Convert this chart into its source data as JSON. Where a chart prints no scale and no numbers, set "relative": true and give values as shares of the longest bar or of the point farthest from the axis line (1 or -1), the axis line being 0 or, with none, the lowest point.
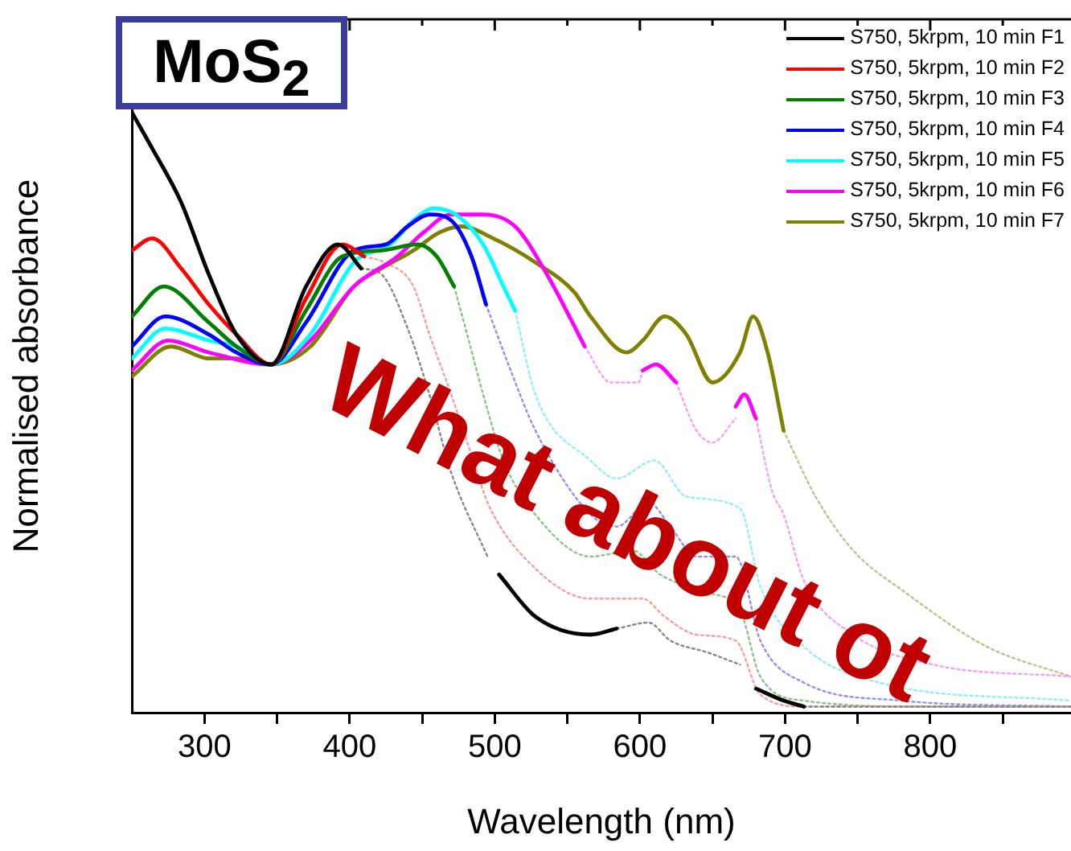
{
  "chart_data": {
    "type": "line",
    "relative": true,
    "title": "MoS$_{2}$",
    "xlabel": "Wavelength (nm)",
    "ylabel": "Normalised absorbance",
    "xlim": [
      250,
      897
    ],
    "xticks": [
      300,
      {
        "value": 350,
        "label": null
      },
      400,
      {
        "value": 450,
        "label": null
      },
      500,
      {
        "value": 550,
        "label": null
      },
      600,
      {
        "value": 650,
        "label": null
      },
      700,
      {
        "value": 750,
        "label": null
      },
      800,
      {
        "value": 850,
        "label": null
      }
    ],
    "tick_labels": "x",
    "grid": false,
    "legend": "top right",
    "marker": "none",
    "line_style": "solid",
    "annotations": [
      "What about ot"
    ],
    "series": [
      {
        "name": "S750, 5krpm, 10 min F1",
        "color": "#000000",
        "x": [
          250,
          264,
          284,
          303,
          322,
          346,
          370,
          392,
          408,
          450,
          503,
          528,
          566,
          584,
          630,
          680,
          699,
          713
        ],
        "values": [
          1,
          0.94,
          0.85,
          0.73,
          0.63,
          0.58,
          0.71,
          0.78,
          0.74,
          null,
          0.23,
          0.16,
          0.13,
          0.14,
          null,
          0.04,
          0.02,
          0.01
        ]
      },
      {
        "name": "S750, 5krpm, 10 min F2",
        "color": "#ff0000",
        "x": [
          250,
          264,
          284,
          303,
          322,
          346,
          370,
          395,
          410
        ],
        "values": [
          0.77,
          0.79,
          0.74,
          0.68,
          0.63,
          0.58,
          0.69,
          0.78,
          0.76
        ]
      },
      {
        "name": "S750, 5krpm, 10 min F3",
        "color": "#007f00",
        "x": [
          250,
          272,
          303,
          322,
          346,
          370,
          395,
          422,
          447,
          460,
          472
        ],
        "values": [
          0.66,
          0.71,
          0.65,
          0.61,
          0.58,
          0.67,
          0.76,
          0.77,
          0.78,
          0.76,
          0.71
        ]
      },
      {
        "name": "S750, 5krpm, 10 min F4",
        "color": "#0000ff",
        "x": [
          250,
          273,
          303,
          322,
          346,
          370,
          403,
          425,
          440,
          455,
          470,
          484,
          494
        ],
        "values": [
          0.61,
          0.66,
          0.63,
          0.6,
          0.58,
          0.65,
          0.77,
          0.78,
          0.81,
          0.83,
          0.82,
          0.76,
          0.68
        ]
      },
      {
        "name": "S750, 5krpm, 10 min F5",
        "color": "#00ffff",
        "x": [
          250,
          273,
          303,
          322,
          346,
          373,
          403,
          428,
          444,
          458,
          473,
          492,
          506,
          514
        ],
        "values": [
          0.59,
          0.64,
          0.62,
          0.61,
          0.58,
          0.63,
          0.75,
          0.78,
          0.82,
          0.84,
          0.83,
          0.78,
          0.71,
          0.67
        ]
      },
      {
        "name": "S750, 5krpm, 10 min F6",
        "color": "#ff00ff",
        "x": [
          250,
          275,
          303,
          346,
          373,
          403,
          433,
          451,
          470,
          492,
          514,
          536,
          562,
          580,
          602,
          611,
          625,
          650,
          666,
          672,
          680
        ],
        "values": [
          0.57,
          0.62,
          0.6,
          0.58,
          0.62,
          0.71,
          0.76,
          0.8,
          0.83,
          0.83,
          0.81,
          0.73,
          0.61,
          null,
          0.57,
          0.58,
          0.55,
          null,
          0.51,
          0.53,
          0.49
        ]
      },
      {
        "name": "S750, 5krpm, 10 min F7",
        "color": "#808000",
        "x": [
          250,
          277,
          303,
          322,
          346,
          373,
          403,
          422,
          444,
          462,
          477,
          499,
          528,
          555,
          566,
          591,
          602,
          617,
          632,
          650,
          669,
          678,
          688,
          699
        ],
        "values": [
          0.56,
          0.61,
          0.59,
          0.59,
          0.58,
          0.61,
          0.71,
          0.74,
          0.77,
          0.8,
          0.81,
          0.79,
          0.75,
          0.7,
          0.66,
          0.6,
          0.62,
          0.66,
          0.63,
          0.55,
          0.6,
          0.66,
          0.6,
          0.47
        ]
      },
      {
        "color": "#888888",
        "line_style": "dotted",
        "x": [
          408,
          422,
          440,
          455,
          470,
          495,
          540,
          584,
          606,
          621,
          647,
          669,
          690,
          713,
          800,
          897
        ],
        "values": [
          0.74,
          0.73,
          0.64,
          0.53,
          0.4,
          0.26,
          null,
          0.14,
          0.15,
          0.12,
          0.1,
          0.08,
          null,
          0.01,
          0.01,
          0.01
        ]
      },
      {
        "color": "#f4a0a0",
        "line_style": "dotted",
        "x": [
          410,
          424,
          444,
          455,
          470,
          488,
          495,
          528,
          566,
          602,
          617,
          639,
          666,
          683,
          713,
          800,
          897
        ],
        "values": [
          0.76,
          0.75,
          0.71,
          0.63,
          0.53,
          0.4,
          0.35,
          0.24,
          0.19,
          0.19,
          0.16,
          0.13,
          0.12,
          0.03,
          0.01,
          0.01,
          0.01
        ]
      },
      {
        "color": "#90c090",
        "line_style": "dotted",
        "x": [
          472,
          481,
          492,
          506,
          528,
          566,
          595,
          614,
          647,
          669,
          683,
          713,
          800,
          897
        ],
        "values": [
          0.71,
          0.63,
          0.53,
          0.42,
          0.33,
          0.26,
          0.27,
          0.23,
          0.2,
          0.17,
          0.06,
          0.02,
          0.01,
          0.01
        ]
      },
      {
        "color": "#9090f0",
        "line_style": "dotted",
        "x": [
          494,
          511,
          528,
          566,
          584,
          606,
          621,
          639,
          666,
          683,
          713,
          780,
          897
        ],
        "values": [
          0.68,
          0.57,
          0.47,
          0.33,
          0.31,
          0.35,
          0.31,
          0.26,
          0.26,
          0.12,
          0.05,
          0.02,
          0.01
        ]
      },
      {
        "color": "#90f0f0",
        "line_style": "dotted",
        "x": [
          514,
          528,
          566,
          584,
          610,
          632,
          669,
          683,
          713,
          765,
          897
        ],
        "values": [
          0.67,
          0.53,
          0.42,
          0.39,
          0.42,
          0.36,
          0.34,
          0.21,
          0.11,
          0.05,
          0.02
        ]
      },
      {
        "color": "#f4a0f4",
        "line_style": "dotted",
        "x": [
          562,
          580,
          599,
          602,
          613,
          625,
          639,
          650,
          666,
          672,
          680,
          691,
          699,
          713,
          747,
          802,
          897
        ],
        "values": [
          0.61,
          0.55,
          0.55,
          0.57,
          null,
          0.55,
          0.47,
          0.45,
          0.49,
          null,
          0.49,
          0.37,
          0.33,
          0.22,
          0.13,
          0.08,
          0.06
        ]
      },
      {
        "color": "#c0c090",
        "line_style": "dotted",
        "x": [
          699,
          721,
          747,
          783,
          839,
          897
        ],
        "values": [
          0.47,
          0.36,
          0.27,
          0.2,
          0.11,
          0.06
        ]
      }
    ]
  }
}
